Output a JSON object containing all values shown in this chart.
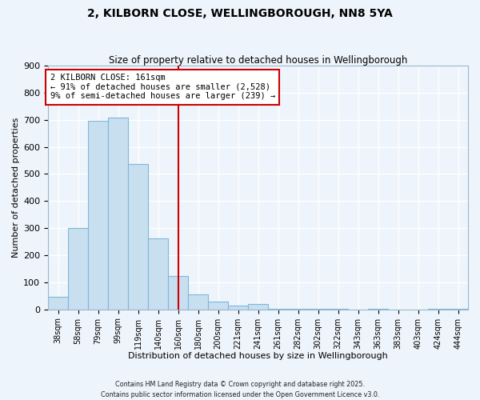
{
  "title": "2, KILBORN CLOSE, WELLINGBOROUGH, NN8 5YA",
  "subtitle": "Size of property relative to detached houses in Wellingborough",
  "xlabel": "Distribution of detached houses by size in Wellingborough",
  "ylabel": "Number of detached properties",
  "categories": [
    "38sqm",
    "58sqm",
    "79sqm",
    "99sqm",
    "119sqm",
    "140sqm",
    "160sqm",
    "180sqm",
    "200sqm",
    "221sqm",
    "241sqm",
    "261sqm",
    "282sqm",
    "302sqm",
    "322sqm",
    "343sqm",
    "363sqm",
    "383sqm",
    "403sqm",
    "424sqm",
    "444sqm"
  ],
  "values": [
    45,
    300,
    695,
    707,
    538,
    263,
    122,
    54,
    28,
    14,
    20,
    2,
    3,
    1,
    2,
    0,
    1,
    0,
    0,
    1,
    1
  ],
  "bar_color": "#c8dff0",
  "bar_edge_color": "#7eb8d8",
  "highlight_index": 6,
  "highlight_line_color": "#cc0000",
  "annotation_title": "2 KILBORN CLOSE: 161sqm",
  "annotation_line2": "← 91% of detached houses are smaller (2,528)",
  "annotation_line3": "9% of semi-detached houses are larger (239) →",
  "annotation_box_edge_color": "#cc0000",
  "ylim": [
    0,
    900
  ],
  "yticks": [
    0,
    100,
    200,
    300,
    400,
    500,
    600,
    700,
    800,
    900
  ],
  "background_color": "#eef4fb",
  "grid_color": "#ffffff",
  "footer_line1": "Contains HM Land Registry data © Crown copyright and database right 2025.",
  "footer_line2": "Contains public sector information licensed under the Open Government Licence v3.0."
}
